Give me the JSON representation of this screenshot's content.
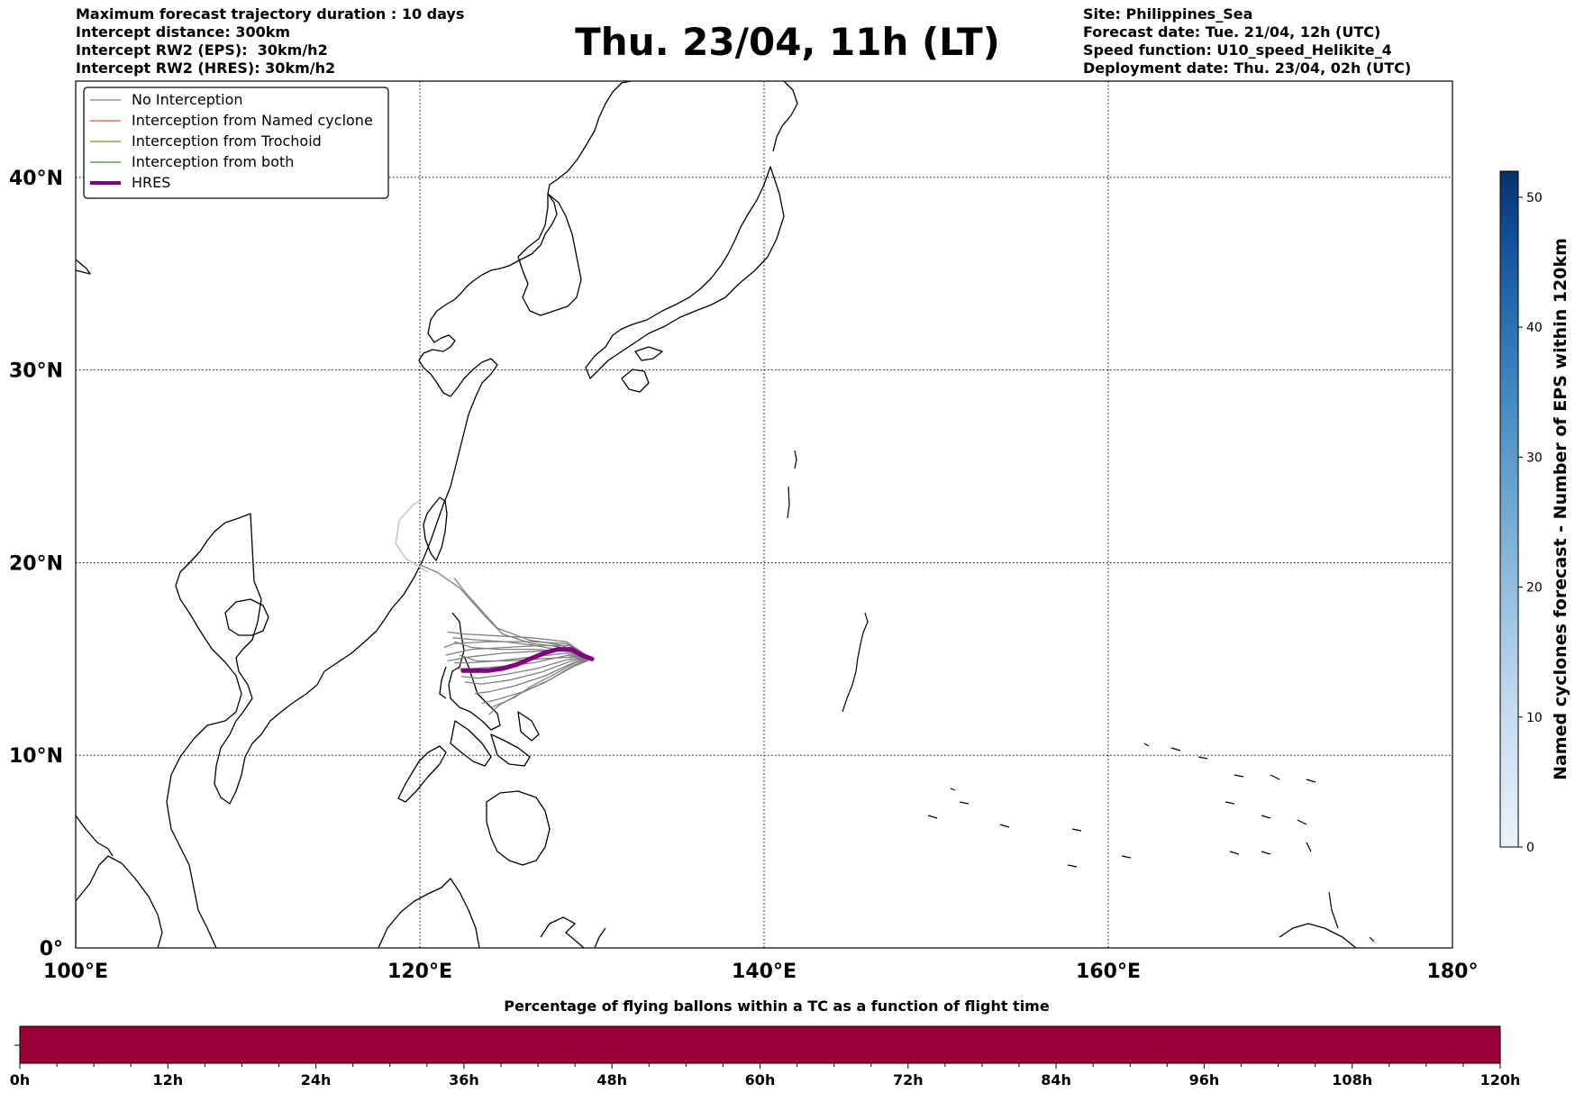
{
  "header_left": [
    "Maximum forecast trajectory duration : 10 days",
    "Intercept distance: 300km",
    "Intercept RW2 (EPS):  30km/h2",
    "Intercept RW2 (HRES): 30km/h2"
  ],
  "title": "Thu. 23/04, 11h (LT)",
  "header_right": [
    "Site: Philippines_Sea",
    "Forecast date: Tue. 21/04, 12h (UTC)",
    "Speed function: U10_speed_Helikite_4",
    "Deployment date: Thu. 23/04, 02h (UTC)"
  ],
  "map": {
    "lon_ticks": [
      "100°E",
      "120°E",
      "140°E",
      "160°E",
      "180°"
    ],
    "lat_ticks": [
      "0°",
      "10°N",
      "20°N",
      "30°N",
      "40°N"
    ],
    "lon_range": [
      100,
      180
    ],
    "lat_range": [
      0,
      45
    ],
    "site": {
      "name": "Philippines_Sea",
      "lon": 130.0,
      "lat": 15.0
    }
  },
  "legend": [
    {
      "label": "No Interception",
      "color": "#808080"
    },
    {
      "label": "Interception from Named cyclone",
      "color": "#e8552b"
    },
    {
      "label": "Interception from Trochoid",
      "color": "#8a8a1a"
    },
    {
      "label": "Interception from both",
      "color": "#3a8a3a"
    },
    {
      "label": "HRES",
      "color": "#800080"
    }
  ],
  "colorbar": {
    "label": "Named cyclones forecast - Number of EPS within 120km",
    "ticks": [
      "0",
      "10",
      "20",
      "30",
      "40",
      "50"
    ],
    "range": [
      0,
      52
    ],
    "color_low": "#eaf2fb",
    "color_high": "#08306b"
  },
  "timebar": {
    "title": "Percentage of flying ballons within a TC as a function of flight time",
    "ticks": [
      "0h",
      "12h",
      "24h",
      "36h",
      "48h",
      "60h",
      "72h",
      "84h",
      "96h",
      "108h",
      "120h"
    ],
    "fill_color": "#9c0039"
  },
  "chart_data": {
    "type": "map",
    "hres_track": [
      [
        130.0,
        15.0
      ],
      [
        129.4,
        15.2
      ],
      [
        128.8,
        15.5
      ],
      [
        128.0,
        15.5
      ],
      [
        127.2,
        15.3
      ],
      [
        126.4,
        15.0
      ],
      [
        125.6,
        14.7
      ],
      [
        124.8,
        14.5
      ],
      [
        124.0,
        14.4
      ],
      [
        123.2,
        14.4
      ],
      [
        122.5,
        14.4
      ]
    ],
    "eps_tracks": [
      [
        [
          130.0,
          15.0
        ],
        [
          128.5,
          15.9
        ],
        [
          126.5,
          16.1
        ],
        [
          124.5,
          16.2
        ],
        [
          122.5,
          16.3
        ],
        [
          121.6,
          16.4
        ]
      ],
      [
        [
          130.0,
          15.0
        ],
        [
          128.5,
          15.8
        ],
        [
          126.5,
          15.9
        ],
        [
          124.0,
          15.9
        ],
        [
          122.0,
          15.8
        ],
        [
          121.4,
          15.6
        ]
      ],
      [
        [
          130.0,
          15.0
        ],
        [
          128.8,
          15.7
        ],
        [
          127.0,
          15.7
        ],
        [
          125.0,
          15.6
        ],
        [
          123.0,
          15.5
        ],
        [
          121.5,
          15.2
        ]
      ],
      [
        [
          130.0,
          15.0
        ],
        [
          128.6,
          15.5
        ],
        [
          126.8,
          15.4
        ],
        [
          124.8,
          15.3
        ],
        [
          122.8,
          15.1
        ],
        [
          121.6,
          14.9
        ]
      ],
      [
        [
          130.0,
          15.0
        ],
        [
          128.5,
          15.3
        ],
        [
          126.5,
          15.1
        ],
        [
          124.5,
          14.9
        ],
        [
          122.8,
          14.8
        ],
        [
          122.0,
          14.8
        ]
      ],
      [
        [
          130.0,
          15.0
        ],
        [
          128.6,
          15.2
        ],
        [
          126.6,
          14.8
        ],
        [
          124.6,
          14.6
        ],
        [
          123.0,
          14.5
        ],
        [
          122.2,
          14.5
        ]
      ],
      [
        [
          130.0,
          15.0
        ],
        [
          128.7,
          15.0
        ],
        [
          126.8,
          14.5
        ],
        [
          125.0,
          14.2
        ],
        [
          123.4,
          14.0
        ],
        [
          122.4,
          14.1
        ]
      ],
      [
        [
          130.0,
          15.0
        ],
        [
          128.8,
          14.9
        ],
        [
          127.0,
          14.3
        ],
        [
          125.2,
          13.9
        ],
        [
          123.6,
          13.7
        ],
        [
          122.6,
          13.8
        ]
      ],
      [
        [
          130.0,
          15.0
        ],
        [
          128.9,
          14.8
        ],
        [
          127.2,
          14.1
        ],
        [
          125.5,
          13.6
        ],
        [
          124.0,
          13.3
        ],
        [
          123.2,
          13.2
        ]
      ],
      [
        [
          130.0,
          15.0
        ],
        [
          129.0,
          14.7
        ],
        [
          127.5,
          13.9
        ],
        [
          126.0,
          13.3
        ],
        [
          124.5,
          12.9
        ],
        [
          123.6,
          12.7
        ]
      ],
      [
        [
          130.0,
          15.0
        ],
        [
          129.0,
          14.8
        ],
        [
          127.8,
          14.2
        ],
        [
          126.5,
          13.6
        ],
        [
          125.5,
          13.0
        ],
        [
          124.2,
          12.5
        ]
      ],
      [
        [
          130.0,
          15.0
        ],
        [
          128.4,
          15.6
        ],
        [
          126.5,
          15.8
        ],
        [
          124.8,
          16.3
        ],
        [
          123.8,
          17.2
        ],
        [
          123.0,
          18.0
        ],
        [
          122.3,
          18.7
        ],
        [
          121.0,
          19.5
        ],
        [
          120.0,
          19.9
        ]
      ],
      [
        [
          130.0,
          15.0
        ],
        [
          128.3,
          15.7
        ],
        [
          126.3,
          16.0
        ],
        [
          124.5,
          16.6
        ],
        [
          123.5,
          17.6
        ],
        [
          122.6,
          18.5
        ],
        [
          122.0,
          19.2
        ]
      ],
      [
        [
          130.0,
          15.0
        ],
        [
          128.7,
          15.4
        ],
        [
          126.6,
          15.5
        ],
        [
          124.6,
          15.5
        ],
        [
          123.0,
          15.6
        ],
        [
          122.0,
          15.9
        ]
      ],
      [
        [
          130.0,
          15.0
        ],
        [
          128.8,
          15.1
        ],
        [
          126.9,
          15.0
        ],
        [
          125.0,
          14.9
        ],
        [
          123.3,
          14.9
        ],
        [
          122.3,
          15.2
        ]
      ],
      [
        [
          130.0,
          15.0
        ],
        [
          128.9,
          14.6
        ],
        [
          127.3,
          13.8
        ],
        [
          125.8,
          13.2
        ],
        [
          124.6,
          12.6
        ],
        [
          124.0,
          12.1
        ]
      ],
      [
        [
          130.0,
          15.0
        ],
        [
          128.5,
          15.4
        ],
        [
          126.7,
          15.7
        ],
        [
          124.9,
          15.9
        ],
        [
          123.2,
          16.0
        ],
        [
          121.9,
          16.1
        ]
      ]
    ],
    "light_track": [
      [
        120.5,
        19.5
      ],
      [
        119.2,
        20.2
      ],
      [
        118.6,
        21.0
      ],
      [
        118.8,
        22.2
      ],
      [
        119.6,
        23.0
      ],
      [
        120.0,
        23.2
      ]
    ]
  }
}
